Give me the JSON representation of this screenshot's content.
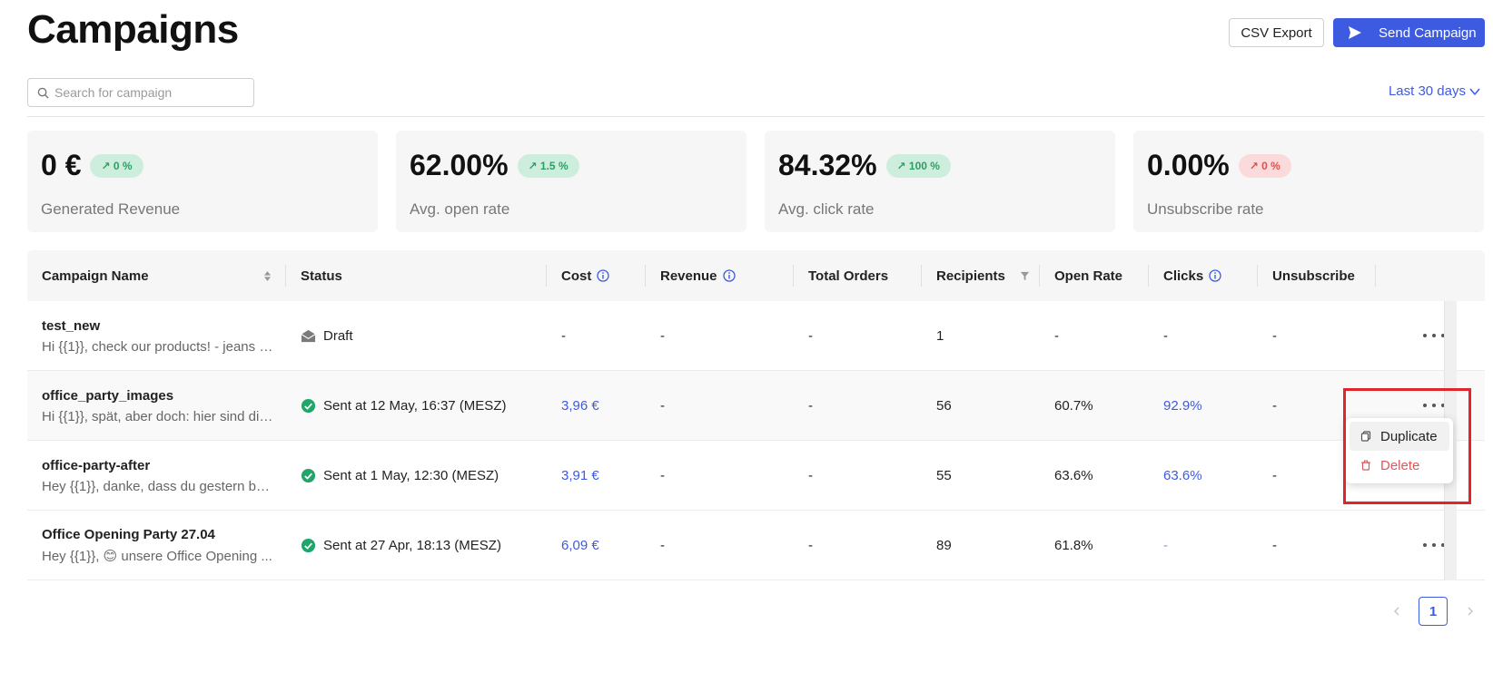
{
  "header": {
    "title": "Campaigns",
    "csv_export_label": "CSV Export",
    "send_campaign_label": "Send Campaign"
  },
  "search": {
    "placeholder": "Search for campaign",
    "value": ""
  },
  "date_range": {
    "label": "Last 30 days"
  },
  "stats": [
    {
      "value": "0 €",
      "delta": "0 %",
      "direction": "up",
      "label": "Generated Revenue"
    },
    {
      "value": "62.00%",
      "delta": "1.5 %",
      "direction": "up",
      "label": "Avg. open rate"
    },
    {
      "value": "84.32%",
      "delta": "100 %",
      "direction": "up",
      "label": "Avg. click rate"
    },
    {
      "value": "0.00%",
      "delta": "0 %",
      "direction": "down",
      "label": "Unsubscribe rate"
    }
  ],
  "table": {
    "columns": [
      "Campaign Name",
      "Status",
      "Cost",
      "Revenue",
      "Total Orders",
      "Recipients",
      "Open Rate",
      "Clicks",
      "Unsubscribe"
    ],
    "rows": [
      {
        "name": "test_new",
        "preview": "Hi {{1}}, check our products! - jeans -...",
        "status": "Draft",
        "status_type": "draft",
        "cost": "-",
        "revenue": "-",
        "orders": "-",
        "recipients": "1",
        "open_rate": "-",
        "clicks": "-",
        "unsubscribe": "-"
      },
      {
        "name": "office_party_images",
        "preview": "Hi {{1}}, spät, aber doch: hier sind die...",
        "status": "Sent at 12 May, 16:37 (MESZ)",
        "status_type": "sent",
        "cost": "3,96 €",
        "revenue": "-",
        "orders": "-",
        "recipients": "56",
        "open_rate": "60.7%",
        "clicks": "92.9%",
        "unsubscribe": "-"
      },
      {
        "name": "office-party-after",
        "preview": "Hey {{1}}, danke, dass du gestern bei ...",
        "status": "Sent at 1 May, 12:30 (MESZ)",
        "status_type": "sent",
        "cost": "3,91 €",
        "revenue": "-",
        "orders": "-",
        "recipients": "55",
        "open_rate": "63.6%",
        "clicks": "63.6%",
        "unsubscribe": "-"
      },
      {
        "name": "Office Opening Party 27.04",
        "preview": "Hey {{1}}, 😊 unsere Office Opening ...",
        "status": "Sent at 27 Apr, 18:13 (MESZ)",
        "status_type": "sent",
        "cost": "6,09 €",
        "revenue": "-",
        "orders": "-",
        "recipients": "89",
        "open_rate": "61.8%",
        "clicks": "-",
        "unsubscribe": "-"
      }
    ]
  },
  "row_menu": {
    "duplicate_label": "Duplicate",
    "delete_label": "Delete"
  },
  "pagination": {
    "current_page": "1"
  },
  "colors": {
    "accent": "#3d5be0",
    "positive": "#2e9e64",
    "negative": "#d9534f",
    "highlight": "#e0262d"
  }
}
